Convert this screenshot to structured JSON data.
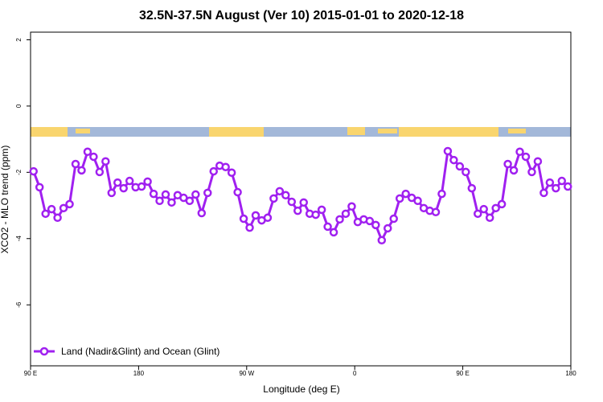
{
  "chart_data": {
    "type": "line",
    "title": "32.5N-37.5N August (Ver 10)   2015-01-01 to 2020-12-18",
    "x_label": "Longitude (deg E)",
    "y_label": "XCO2 - MLO trend (ppm)",
    "x": [
      92.5,
      97.5,
      102.5,
      107.5,
      112.5,
      117.5,
      122.5,
      127.5,
      132.5,
      137.5,
      142.5,
      147.5,
      152.5,
      157.5,
      162.5,
      167.5,
      172.5,
      177.5,
      182.5,
      187.5,
      192.5,
      197.5,
      202.5,
      207.5,
      212.5,
      217.5,
      222.5,
      227.5,
      232.5,
      237.5,
      242.5,
      247.5,
      252.5,
      257.5,
      262.5,
      267.5,
      272.5,
      277.5,
      282.5,
      287.5,
      292.5,
      297.5,
      302.5,
      307.5,
      312.5,
      317.5,
      322.5,
      327.5,
      332.5,
      337.5,
      342.5,
      347.5,
      352.5,
      357.5,
      362.5,
      367.5,
      372.5,
      377.5,
      382.5,
      387.5,
      392.5,
      397.5,
      402.5,
      407.5,
      412.5,
      417.5,
      422.5,
      427.5,
      432.5,
      437.5,
      442.5,
      447.5,
      452.5,
      457.5,
      462.5,
      467.5,
      472.5,
      477.5,
      482.5,
      487.5,
      492.5,
      497.5,
      502.5,
      507.5,
      512.5,
      517.5,
      522.5,
      527.5,
      532.5,
      537.5
    ],
    "series": [
      {
        "name": "Land (Nadir&Glint) and Ocean (Glint)",
        "color": "#a020f0",
        "values": [
          -1.97,
          -2.45,
          -3.25,
          -3.11,
          -3.37,
          -3.08,
          -2.96,
          -1.75,
          -1.94,
          -1.38,
          -1.53,
          -1.99,
          -1.67,
          -2.62,
          -2.31,
          -2.48,
          -2.26,
          -2.45,
          -2.43,
          -2.28,
          -2.65,
          -2.86,
          -2.67,
          -2.91,
          -2.69,
          -2.77,
          -2.86,
          -2.67,
          -3.23,
          -2.62,
          -1.97,
          -1.8,
          -1.84,
          -2.01,
          -2.6,
          -3.4,
          -3.67,
          -3.3,
          -3.45,
          -3.37,
          -2.79,
          -2.57,
          -2.69,
          -2.89,
          -3.16,
          -2.91,
          -3.25,
          -3.28,
          -3.13,
          -3.64,
          -3.81,
          -3.42,
          -3.25,
          -3.03,
          -3.5,
          -3.42,
          -3.47,
          -3.59,
          -4.05,
          -3.69,
          -3.4,
          -2.79,
          -2.65,
          -2.77,
          -2.86,
          -3.08,
          -3.16,
          -3.2,
          -2.65,
          -1.36,
          -1.63,
          -1.82,
          -1.99,
          -2.48,
          -3.25,
          -3.11,
          -3.37,
          -3.08,
          -2.96,
          -1.75,
          -1.94,
          -1.38,
          -1.53,
          -1.99,
          -1.67,
          -2.62,
          -2.31,
          -2.48,
          -2.26,
          -2.43
        ]
      }
    ],
    "xlim": [
      90,
      540
    ],
    "xticks": [
      {
        "value": 90,
        "label": "90 E"
      },
      180,
      {
        "value": 270,
        "label": "90 W"
      },
      {
        "value": 360,
        "label": "0"
      },
      {
        "value": 450,
        "label": "90 E"
      },
      {
        "value": 540,
        "label": "180"
      }
    ],
    "ylim": [
      -7.84,
      2.23
    ],
    "yticks": [
      2,
      0,
      -2,
      -4,
      -6
    ],
    "grid": false,
    "legend": "bottom-left"
  }
}
